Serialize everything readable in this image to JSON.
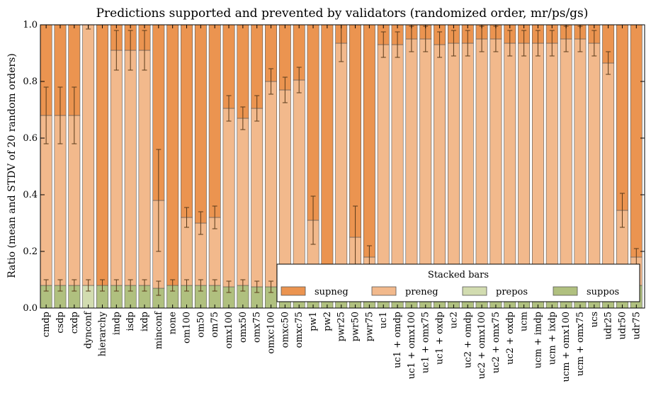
{
  "chart_data": {
    "type": "bar",
    "stacked": true,
    "title": "Predictions supported and prevented by validators (randomized order, mr/ps/gs)",
    "xlabel": "",
    "ylabel": "Ratio (mean and STDV of 20 random orders)",
    "ylim": [
      0,
      1.0
    ],
    "yticks": [
      "0.0",
      "0.2",
      "0.4",
      "0.6",
      "0.8",
      "1.0"
    ],
    "grid": false,
    "legend": {
      "title": "Stacked bars",
      "placement": "lower-right"
    },
    "categories": [
      "cmdp",
      "csdp",
      "cxdp",
      "dynconf",
      "hierarchy",
      "imdp",
      "isdp",
      "ixdp",
      "minconf",
      "none",
      "om100",
      "om50",
      "om75",
      "omx100",
      "omx50",
      "omx75",
      "omxc100",
      "omxc50",
      "omxc75",
      "pw1",
      "pw2",
      "pwr25",
      "pwr50",
      "pwr75",
      "uc1",
      "uc1 + omdp",
      "uc1 + omx100",
      "uc1 + omx75",
      "uc1 + oxdp",
      "uc2",
      "uc2 + omdp",
      "uc2 + omx100",
      "uc2 + omx75",
      "uc2 + oxdp",
      "ucm",
      "ucm + imdp",
      "ucm + ixdp",
      "ucm + omx100",
      "ucm + omx75",
      "ucs",
      "udr25",
      "udr50",
      "udr75"
    ],
    "series": [
      {
        "name": "suppos",
        "color": "#b0c07f",
        "values": [
          0.08,
          0.08,
          0.08,
          0,
          0.08,
          0.08,
          0.08,
          0.08,
          0.07,
          0.08,
          0.08,
          0.08,
          0.08,
          0.075,
          0.08,
          0.075,
          0.075,
          0.08,
          0.08,
          0.08,
          0.08,
          0.08,
          0.08,
          0.08,
          0.08,
          0.08,
          0.08,
          0.08,
          0.08,
          0.08,
          0.08,
          0.08,
          0.08,
          0.08,
          0.08,
          0.08,
          0.08,
          0.08,
          0.08,
          0.08,
          0.08,
          0.08,
          0.08
        ],
        "errors": [
          0.02,
          0.02,
          0.02,
          0,
          0.02,
          0.02,
          0.02,
          0.02,
          0.025,
          0.02,
          0.02,
          0.02,
          0.02,
          0.02,
          0.02,
          0.02,
          0.02,
          0.02,
          0.02,
          0.02,
          0.02,
          0.02,
          0.02,
          0.02,
          0.02,
          0.02,
          0.02,
          0.02,
          0.02,
          0.02,
          0.02,
          0.02,
          0.02,
          0.02,
          0.02,
          0.02,
          0.02,
          0.02,
          0.02,
          0.02,
          0.02,
          0.02,
          0.02
        ]
      },
      {
        "name": "prepos",
        "color": "#d2dcb0",
        "values": [
          0,
          0,
          0,
          0.08,
          0,
          0,
          0,
          0,
          0,
          0,
          0,
          0,
          0,
          0,
          0,
          0,
          0,
          0,
          0,
          0,
          0,
          0,
          0,
          0,
          0,
          0,
          0,
          0,
          0,
          0,
          0,
          0,
          0,
          0,
          0,
          0,
          0,
          0,
          0,
          0,
          0,
          0,
          0
        ],
        "errors": [
          0,
          0,
          0,
          0.02,
          0,
          0,
          0,
          0,
          0,
          0,
          0,
          0,
          0,
          0,
          0,
          0,
          0,
          0,
          0,
          0,
          0,
          0,
          0,
          0,
          0,
          0,
          0,
          0,
          0,
          0,
          0,
          0,
          0,
          0,
          0,
          0,
          0,
          0,
          0,
          0,
          0,
          0,
          0
        ]
      },
      {
        "name": "preneg",
        "color": "#f2b98c",
        "values": [
          0.6,
          0.6,
          0.6,
          0.92,
          0,
          0.83,
          0.83,
          0.83,
          0.31,
          0,
          0.24,
          0.22,
          0.24,
          0.63,
          0.59,
          0.63,
          0.725,
          0.69,
          0.725,
          0.23,
          0,
          0.855,
          0.17,
          0.1,
          0.85,
          0.85,
          0.87,
          0.87,
          0.85,
          0.855,
          0.855,
          0.87,
          0.87,
          0.855,
          0.855,
          0.855,
          0.855,
          0.87,
          0.87,
          0.855,
          0.785,
          0.265,
          0.1
        ],
        "errors": [
          0.1,
          0.1,
          0.1,
          0.015,
          0,
          0.07,
          0.07,
          0.07,
          0.18,
          0,
          0.035,
          0.04,
          0.04,
          0.045,
          0.04,
          0.045,
          0.045,
          0.045,
          0.045,
          0.085,
          0,
          0.065,
          0.11,
          0.04,
          0.045,
          0.045,
          0.045,
          0.045,
          0.045,
          0.045,
          0.045,
          0.045,
          0.045,
          0.045,
          0.045,
          0.045,
          0.045,
          0.045,
          0.045,
          0.045,
          0.04,
          0.06,
          0.03
        ]
      },
      {
        "name": "supneg",
        "color": "#eb9450",
        "values": [
          0.32,
          0.32,
          0.32,
          0,
          0.92,
          0.09,
          0.09,
          0.09,
          0.62,
          0.92,
          0.68,
          0.7,
          0.68,
          0.295,
          0.33,
          0.295,
          0.2,
          0.23,
          0.195,
          0.69,
          0.92,
          0.065,
          0.75,
          0.82,
          0.07,
          0.07,
          0.05,
          0.05,
          0.07,
          0.065,
          0.065,
          0.05,
          0.05,
          0.065,
          0.065,
          0.065,
          0.065,
          0.05,
          0.05,
          0.065,
          0.135,
          0.655,
          0.82
        ],
        "errors": [
          0,
          0,
          0,
          0,
          0,
          0,
          0,
          0,
          0,
          0,
          0,
          0,
          0,
          0,
          0,
          0,
          0,
          0,
          0,
          0,
          0,
          0,
          0,
          0,
          0,
          0,
          0,
          0,
          0,
          0,
          0,
          0,
          0,
          0,
          0,
          0,
          0,
          0,
          0,
          0,
          0,
          0,
          0
        ]
      }
    ]
  }
}
